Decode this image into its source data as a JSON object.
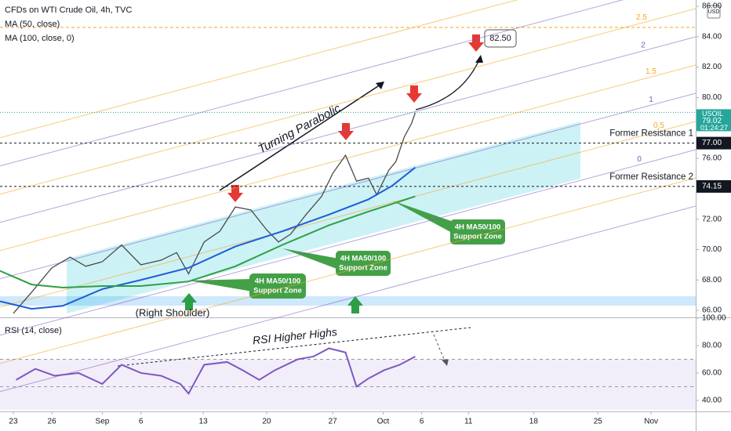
{
  "chart_data": [
    {
      "type": "line",
      "legend": [
        "CFDs on WTI Crude Oil, 4h, TVC",
        "MA (50, close)",
        "MA (100, close, 0)"
      ],
      "xlim": [
        -1.45,
        74.36
      ],
      "ylim": [
        65.54,
        86.41
      ],
      "xticks": [
        {
          "value": 0,
          "label": "23"
        },
        {
          "value": 4.2,
          "label": "26"
        },
        {
          "value": 9.7,
          "label": "Sep"
        },
        {
          "value": 13.9,
          "label": "6"
        },
        {
          "value": 20.7,
          "label": "13"
        },
        {
          "value": 27.6,
          "label": "20"
        },
        {
          "value": 34.8,
          "label": "27"
        },
        {
          "value": 40.3,
          "label": "Oct"
        },
        {
          "value": 44.5,
          "label": "6"
        },
        {
          "value": 49.6,
          "label": "11"
        },
        {
          "value": 56.7,
          "label": "18"
        },
        {
          "value": 63.7,
          "label": "25"
        },
        {
          "value": 69.5,
          "label": "Nov"
        }
      ],
      "yticks": [
        {
          "value": 86,
          "label": "86.00"
        },
        {
          "value": 84,
          "label": "84.00"
        },
        {
          "value": 82,
          "label": "82.00"
        },
        {
          "value": 80,
          "label": "80.00"
        },
        {
          "value": 76,
          "label": "76.00"
        },
        {
          "value": 72,
          "label": "72.00"
        },
        {
          "value": 70,
          "label": "70.00"
        },
        {
          "value": 68,
          "label": "68.00"
        },
        {
          "value": 66,
          "label": "66.00"
        }
      ],
      "series": [
        {
          "name": "USOIL",
          "color": "#4a4a4a",
          "x": [
            0,
            2.0,
            4.2,
            6.2,
            7.9,
            9.7,
            11.8,
            13.9,
            16.1,
            17.8,
            19.1,
            20.8,
            22.5,
            24.2,
            25.9,
            27.6,
            28.9,
            30.2,
            31.9,
            33.6,
            34.8,
            36.2,
            37.4,
            38.7,
            39.6,
            40.9,
            41.7,
            42.6,
            43.4,
            43.8
          ],
          "values": [
            65.8,
            67.2,
            68.8,
            69.5,
            68.9,
            69.2,
            70.3,
            69.0,
            69.3,
            69.8,
            68.4,
            70.5,
            71.2,
            72.8,
            72.6,
            71.3,
            70.5,
            71.0,
            72.3,
            73.5,
            75.0,
            76.2,
            74.5,
            74.7,
            73.6,
            75.2,
            75.8,
            77.4,
            78.3,
            79.0
          ]
        },
        {
          "name": "MA (50, close)",
          "color": "#1f5bd8",
          "x": [
            -1.45,
            2.0,
            5.4,
            9.7,
            13.9,
            19.1,
            24.2,
            29.3,
            34.4,
            38.7,
            41.3,
            43.8
          ],
          "values": [
            66.6,
            66.1,
            66.3,
            67.4,
            68.0,
            68.8,
            70.2,
            71.2,
            72.3,
            73.3,
            74.2,
            75.4
          ]
        },
        {
          "name": "MA (100, close, 0)",
          "color": "#2ea043",
          "x": [
            -1.45,
            2.0,
            5.4,
            9.7,
            13.9,
            19.1,
            24.2,
            29.3,
            34.4,
            38.7,
            41.3,
            43.8
          ],
          "values": [
            68.6,
            67.7,
            67.5,
            67.6,
            67.6,
            67.9,
            68.9,
            70.3,
            71.6,
            72.5,
            73.0,
            73.5
          ]
        }
      ],
      "last": {
        "symbol": "USOIL",
        "value": 79.02,
        "label": "79.02",
        "countdown": "01:24:27"
      },
      "levels": [
        {
          "name": "Former Resistance 1",
          "value": 77,
          "label": "77.00"
        },
        {
          "name": "Former Resistance 2",
          "value": 74.15,
          "label": "74.15"
        }
      ],
      "target": {
        "value": 82.5,
        "label": "82.50"
      },
      "fib_levels": [
        2.5,
        2,
        1.5,
        1,
        0.5,
        0
      ],
      "annotations": {
        "parabolic": "Turning Parabolic",
        "shoulder": "(Right Shoulder)",
        "support": [
          [
            "4H MA50/100",
            "Support Zone"
          ],
          [
            "4H MA50/100",
            "Support Zone"
          ],
          [
            "4H MA50/100",
            "Support Zone"
          ]
        ]
      },
      "currency": "USD"
    },
    {
      "type": "line",
      "xlim": [
        -1.45,
        74.36
      ],
      "ylim": [
        33.1,
        100
      ],
      "yticks": [
        {
          "value": 100,
          "label": "100.00"
        },
        {
          "value": 80,
          "label": "80.00"
        },
        {
          "value": 60,
          "label": "60.00"
        },
        {
          "value": 40,
          "label": "40.00"
        }
      ],
      "bands": [
        70,
        50
      ],
      "series": [
        {
          "name": "RSI (14, close)",
          "color": "#7e57c2",
          "x": [
            0.3,
            2.4,
            4.5,
            7.1,
            9.7,
            11.8,
            13.9,
            16.1,
            18.2,
            19.1,
            20.8,
            23.3,
            25.0,
            26.8,
            28.5,
            31.0,
            32.7,
            34.4,
            36.2,
            37.4,
            38.7,
            40.4,
            42.1,
            43.8
          ],
          "values": [
            55,
            63,
            58,
            60,
            52,
            66,
            60,
            58,
            52,
            45,
            66,
            68,
            62,
            55,
            62,
            70,
            72,
            78,
            75,
            50,
            56,
            62,
            66,
            72
          ]
        }
      ],
      "annotation": "RSI Higher Highs"
    }
  ]
}
